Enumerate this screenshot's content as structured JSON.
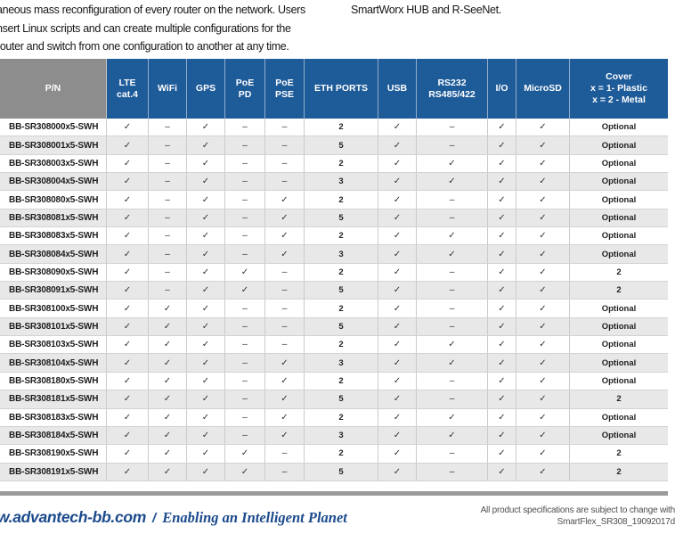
{
  "intro": {
    "left_lines": [
      "aneous mass reconfiguration of every router on the network. Users",
      "nsert Linux scripts and can create multiple configurations for the",
      "router and switch from one configuration to another at any time."
    ],
    "right_text": "SmartWorx HUB and R-SeeNet."
  },
  "table": {
    "headers": [
      "P/N",
      "LTE\ncat.4",
      "WiFi",
      "GPS",
      "PoE\nPD",
      "PoE\nPSE",
      "ETH PORTS",
      "USB",
      "RS232\nRS485/422",
      "I/O",
      "MicroSD",
      "Cover\nx = 1- Plastic\nx = 2 - Metal"
    ],
    "check_mark": "✓",
    "dash_mark": "–",
    "rows": [
      [
        "BB-SR308000x5-SWH",
        "✓",
        "–",
        "✓",
        "–",
        "–",
        "2",
        "✓",
        "–",
        "✓",
        "✓",
        "Optional"
      ],
      [
        "BB-SR308001x5-SWH",
        "✓",
        "–",
        "✓",
        "–",
        "–",
        "5",
        "✓",
        "–",
        "✓",
        "✓",
        "Optional"
      ],
      [
        "BB-SR308003x5-SWH",
        "✓",
        "–",
        "✓",
        "–",
        "–",
        "2",
        "✓",
        "✓",
        "✓",
        "✓",
        "Optional"
      ],
      [
        "BB-SR308004x5-SWH",
        "✓",
        "–",
        "✓",
        "–",
        "–",
        "3",
        "✓",
        "✓",
        "✓",
        "✓",
        "Optional"
      ],
      [
        "BB-SR308080x5-SWH",
        "✓",
        "–",
        "✓",
        "–",
        "✓",
        "2",
        "✓",
        "–",
        "✓",
        "✓",
        "Optional"
      ],
      [
        "BB-SR308081x5-SWH",
        "✓",
        "–",
        "✓",
        "–",
        "✓",
        "5",
        "✓",
        "–",
        "✓",
        "✓",
        "Optional"
      ],
      [
        "BB-SR308083x5-SWH",
        "✓",
        "–",
        "✓",
        "–",
        "✓",
        "2",
        "✓",
        "✓",
        "✓",
        "✓",
        "Optional"
      ],
      [
        "BB-SR308084x5-SWH",
        "✓",
        "–",
        "✓",
        "–",
        "✓",
        "3",
        "✓",
        "✓",
        "✓",
        "✓",
        "Optional"
      ],
      [
        "BB-SR308090x5-SWH",
        "✓",
        "–",
        "✓",
        "✓",
        "–",
        "2",
        "✓",
        "–",
        "✓",
        "✓",
        "2"
      ],
      [
        "BB-SR308091x5-SWH",
        "✓",
        "–",
        "✓",
        "✓",
        "–",
        "5",
        "✓",
        "–",
        "✓",
        "✓",
        "2"
      ],
      [
        "BB-SR308100x5-SWH",
        "✓",
        "✓",
        "✓",
        "–",
        "–",
        "2",
        "✓",
        "–",
        "✓",
        "✓",
        "Optional"
      ],
      [
        "BB-SR308101x5-SWH",
        "✓",
        "✓",
        "✓",
        "–",
        "–",
        "5",
        "✓",
        "–",
        "✓",
        "✓",
        "Optional"
      ],
      [
        "BB-SR308103x5-SWH",
        "✓",
        "✓",
        "✓",
        "–",
        "–",
        "2",
        "✓",
        "✓",
        "✓",
        "✓",
        "Optional"
      ],
      [
        "BB-SR308104x5-SWH",
        "✓",
        "✓",
        "✓",
        "–",
        "✓",
        "3",
        "✓",
        "✓",
        "✓",
        "✓",
        "Optional"
      ],
      [
        "BB-SR308180x5-SWH",
        "✓",
        "✓",
        "✓",
        "–",
        "✓",
        "2",
        "✓",
        "–",
        "✓",
        "✓",
        "Optional"
      ],
      [
        "BB-SR308181x5-SWH",
        "✓",
        "✓",
        "✓",
        "–",
        "✓",
        "5",
        "✓",
        "–",
        "✓",
        "✓",
        "2"
      ],
      [
        "BB-SR308183x5-SWH",
        "✓",
        "✓",
        "✓",
        "–",
        "✓",
        "2",
        "✓",
        "✓",
        "✓",
        "✓",
        "Optional"
      ],
      [
        "BB-SR308184x5-SWH",
        "✓",
        "✓",
        "✓",
        "–",
        "✓",
        "3",
        "✓",
        "✓",
        "✓",
        "✓",
        "Optional"
      ],
      [
        "BB-SR308190x5-SWH",
        "✓",
        "✓",
        "✓",
        "✓",
        "–",
        "2",
        "✓",
        "–",
        "✓",
        "✓",
        "2"
      ],
      [
        "BB-SR308191x5-SWH",
        "✓",
        "✓",
        "✓",
        "✓",
        "–",
        "5",
        "✓",
        "–",
        "✓",
        "✓",
        "2"
      ]
    ]
  },
  "footer": {
    "website": "w.advantech-bb.com",
    "separator": "/",
    "slogan": "Enabling an Intelligent Planet",
    "note_line1": "All product specifications are subject to change with",
    "note_line2": "SmartFlex_SR308_19092017d"
  },
  "colors": {
    "header_blue": "#1e5b99",
    "header_gray": "#8d8d8d",
    "row_alt_gray": "#e8e8e8",
    "footer_blue": "#1b4a8c",
    "divider_bar_gray": "#9b9b9b"
  }
}
